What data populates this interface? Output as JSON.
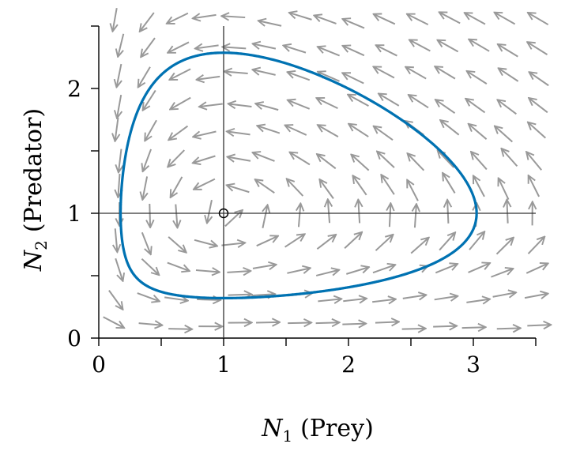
{
  "chart_data": {
    "type": "quiver+line",
    "xlabel": {
      "symbol": "N",
      "sub": "1",
      "text": "(Prey)"
    },
    "ylabel": {
      "symbol": "N",
      "sub": "2",
      "text": "(Predator)"
    },
    "xlim": [
      0,
      3.5
    ],
    "ylim": [
      0,
      2.5
    ],
    "xticks": [
      0,
      0.5,
      1,
      1.5,
      2,
      2.5,
      3,
      3.5
    ],
    "yticks": [
      0,
      0.5,
      1,
      1.5,
      2,
      2.5
    ],
    "xticklabels": [
      "0",
      "",
      "1",
      "",
      "2",
      "",
      "3",
      ""
    ],
    "yticklabels": [
      "0",
      "",
      "1",
      "",
      "2",
      ""
    ],
    "equilibrium": {
      "x": 1,
      "y": 1
    },
    "vector_field": {
      "dN1": "2*N1*(1-N2)",
      "dN2": "N2*(N1-1)",
      "x_range": [
        0.15,
        3.5
      ],
      "y_range": [
        0.1,
        2.55
      ],
      "color": "#999999",
      "normalized": true
    },
    "orbit": {
      "start": [
        1,
        0.32
      ],
      "x_extent": [
        0.17,
        3.03
      ],
      "y_extent": [
        0.32,
        2.29
      ],
      "color": "#0072B2"
    },
    "grid": false
  }
}
